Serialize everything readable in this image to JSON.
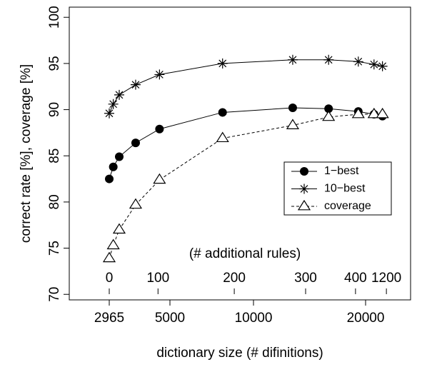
{
  "chart_data": {
    "type": "line",
    "xlabel": "dictionary size (# difinitions)",
    "ylabel": "correct rate [%], coverage [%]",
    "xlim": [
      1625,
      24000
    ],
    "xticks": [
      2965,
      5000,
      10000,
      20000
    ],
    "ylim": [
      69.4,
      101.1
    ],
    "yticks": [
      70,
      75,
      80,
      85,
      90,
      95,
      100
    ],
    "x": [
      2965,
      3100,
      3300,
      3850,
      4650,
      8150,
      13500,
      16700,
      19350,
      20750,
      21500
    ],
    "series": [
      {
        "name": "1−best",
        "color": "#000000",
        "marker": "circle",
        "dashed": false,
        "values": [
          82.5,
          83.8,
          84.9,
          86.4,
          87.9,
          89.7,
          90.2,
          90.1,
          89.8,
          89.5,
          89.3
        ]
      },
      {
        "name": "10−best",
        "color": "#000000",
        "marker": "asterisk",
        "dashed": false,
        "values": [
          89.6,
          90.6,
          91.6,
          92.7,
          93.8,
          95.0,
          95.4,
          95.4,
          95.2,
          94.9,
          94.7
        ]
      },
      {
        "name": "coverage",
        "color": "#000000",
        "marker": "triangle",
        "dashed": true,
        "values": [
          73.9,
          75.3,
          77.0,
          79.7,
          82.4,
          86.9,
          88.3,
          89.2,
          89.5,
          89.5,
          89.5
        ]
      }
    ],
    "top_axis": {
      "title": "(# additional rules)",
      "ticks": [
        0,
        100,
        200,
        300,
        400,
        1200
      ],
      "at": [
        2965,
        4600,
        8850,
        14650,
        19100,
        21850
      ]
    },
    "legend": "right"
  }
}
